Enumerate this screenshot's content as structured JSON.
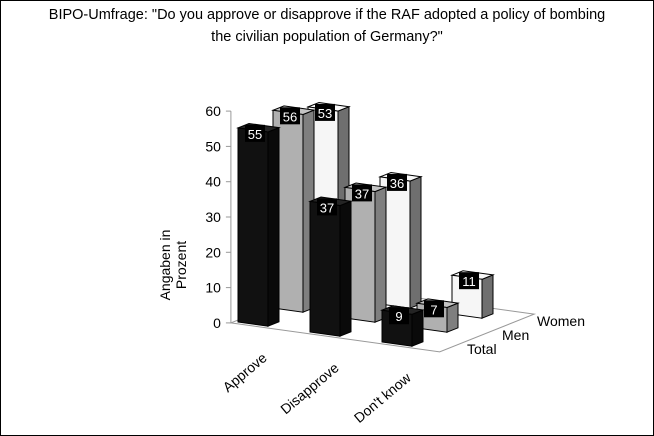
{
  "chart_data": {
    "type": "bar",
    "style": "3d-grouped",
    "title_lines": [
      "BIPO-Umfrage: \"Do you approve or disapprove if the RAF adopted a policy of bombing",
      "the civilian population of Germany?\""
    ],
    "categories": [
      "Approve",
      "Disapprove",
      "Don't know"
    ],
    "series": [
      {
        "name": "Total",
        "values": [
          55,
          37,
          9
        ],
        "color": "#111111"
      },
      {
        "name": "Men",
        "values": [
          56,
          37,
          7
        ],
        "color": "#b0b0b0"
      },
      {
        "name": "Women",
        "values": [
          53,
          36,
          11
        ],
        "color": "#f6f6f6"
      }
    ],
    "ylabel": [
      "Angaben in",
      "Prozent"
    ],
    "xlabel": "",
    "ylim": [
      0,
      60
    ],
    "yticks": [
      0,
      10,
      20,
      30,
      40,
      50,
      60
    ],
    "grid": false,
    "legend": "series labels along depth axis (right)"
  }
}
